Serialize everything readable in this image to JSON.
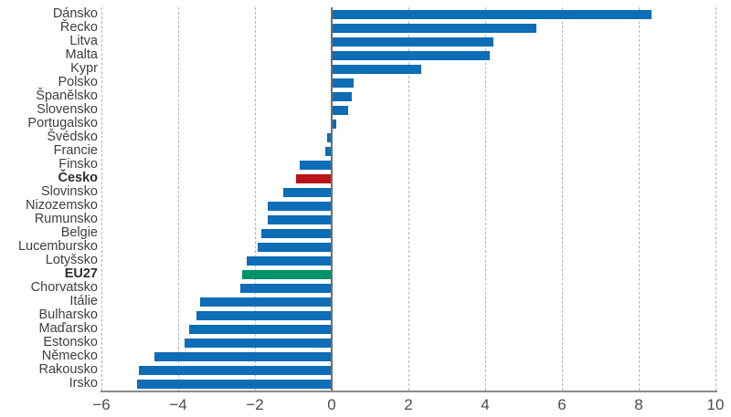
{
  "chart_data": {
    "type": "bar",
    "orientation": "horizontal",
    "title": "",
    "xlabel": "",
    "ylabel": "",
    "xlim": [
      -6,
      10
    ],
    "grid": "dashed-vertical",
    "legend": "none",
    "categories": [
      "Dánsko",
      "Řecko",
      "Litva",
      "Malta",
      "Kypr",
      "Polsko",
      "Španělsko",
      "Slovensko",
      "Portugalsko",
      "Švédsko",
      "Francie",
      "Finsko",
      "Česko",
      "Slovinsko",
      "Nizozemsko",
      "Rumunsko",
      "Belgie",
      "Lucembursko",
      "Lotyšsko",
      "EU27",
      "Chorvatsko",
      "Itálie",
      "Bulharsko",
      "Maďarsko",
      "Estonsko",
      "Německo",
      "Rakousko",
      "Irsko"
    ],
    "values": [
      8.3,
      5.3,
      4.2,
      4.1,
      2.3,
      0.55,
      0.5,
      0.4,
      0.1,
      -0.1,
      -0.15,
      -0.8,
      -0.9,
      -1.25,
      -1.65,
      -1.65,
      -1.8,
      -1.9,
      -2.2,
      -2.3,
      -2.35,
      -3.4,
      -3.5,
      -3.7,
      -3.8,
      -4.6,
      -5.0,
      -5.05
    ],
    "bold_categories": [
      "Česko",
      "EU27"
    ],
    "x_ticks": [
      -6,
      -4,
      -2,
      0,
      2,
      4,
      6,
      8,
      10
    ],
    "x_tick_labels": [
      "−6",
      "−4",
      "−2",
      "0",
      "2",
      "4",
      "6",
      "8",
      "10"
    ],
    "colors": {
      "default_bar": "#0d6db7",
      "highlight_czechia": "#b91418",
      "highlight_eu27": "#00936b",
      "gridline": "#b4b4b4",
      "zero_line": "#6f6f6f",
      "axis_line": "#8a8a8a",
      "category_text": "#3e3e3e",
      "tick_text": "#4c4c4c"
    },
    "highlight_colors_by_category": {
      "Česko": "#b91418",
      "EU27": "#00936b"
    }
  }
}
